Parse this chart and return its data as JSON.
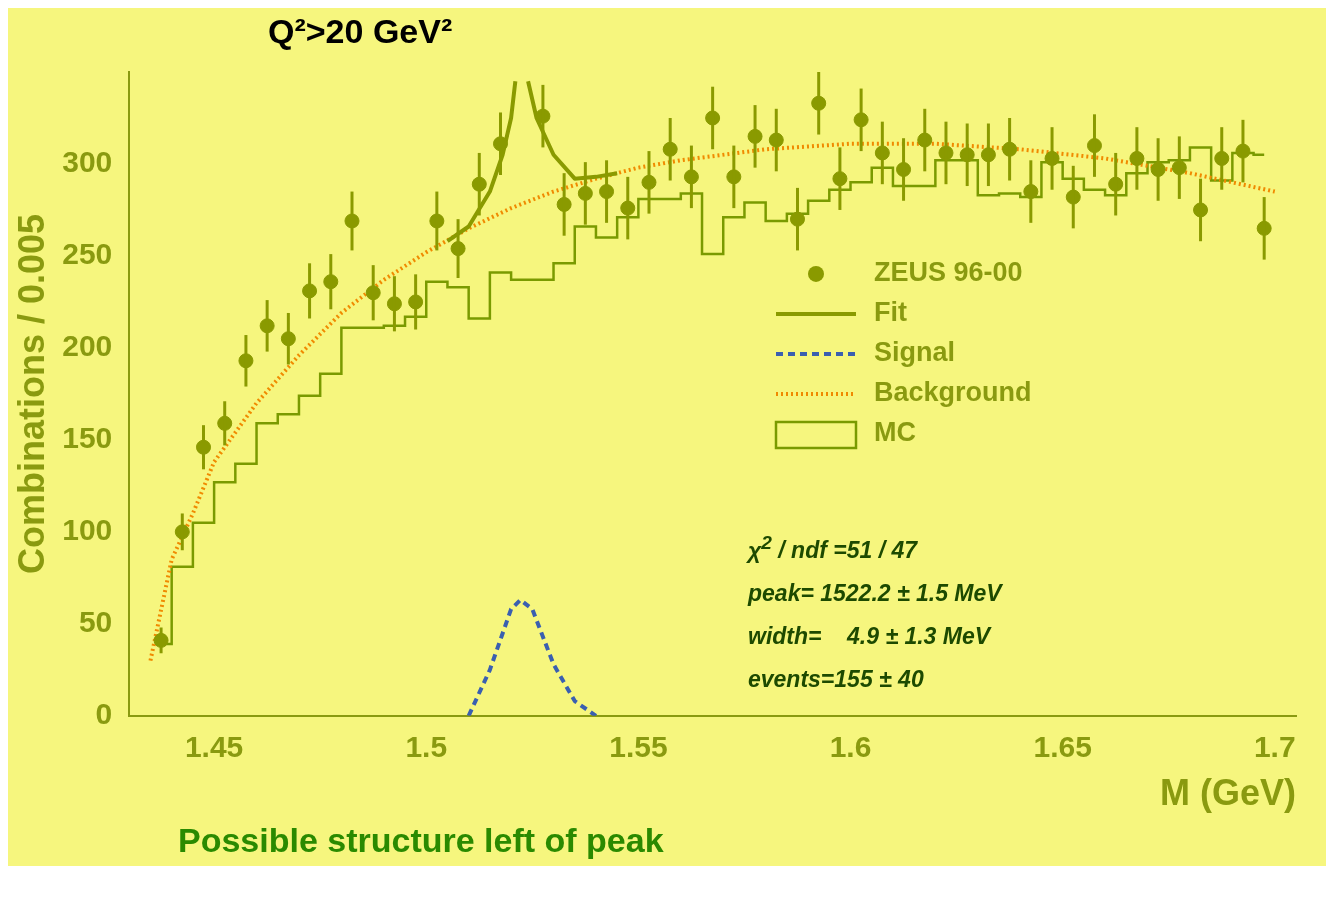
{
  "chart_data": {
    "type": "scatter",
    "xlabel": "M (GeV)",
    "ylabel": "Combinations / 0.005",
    "xlim": [
      1.43,
      1.705
    ],
    "ylim": [
      0,
      350
    ],
    "xticks": [
      1.45,
      1.5,
      1.55,
      1.6,
      1.65,
      1.7
    ],
    "yticks": [
      0,
      50,
      100,
      150,
      200,
      250,
      300
    ],
    "grid": false,
    "legend": "center right",
    "annotations": [
      "Q²>20 GeV²",
      "χ$^{2}$ / ndf =51 / 47",
      "peak= 1522.2 ± 1.5 MeV",
      "width=    4.9 ± 1.3 MeV",
      "events=155 ± 40",
      "Possible structure left of peak"
    ],
    "x": [
      1.4375,
      1.4425,
      1.4475,
      1.4525,
      1.4575,
      1.4625,
      1.4675,
      1.4725,
      1.4775,
      1.4825,
      1.4875,
      1.4925,
      1.4975,
      1.5025,
      1.5075,
      1.5125,
      1.5175,
      1.5225,
      1.5275,
      1.5325,
      1.5375,
      1.5425,
      1.5475,
      1.5525,
      1.5575,
      1.5625,
      1.5675,
      1.5725,
      1.5775,
      1.5825,
      1.5875,
      1.5925,
      1.5975,
      1.6025,
      1.6075,
      1.6125,
      1.6175,
      1.6225,
      1.6275,
      1.6325,
      1.6375,
      1.6425,
      1.6475,
      1.6525,
      1.6575,
      1.6625,
      1.6675,
      1.6725,
      1.6775,
      1.6825,
      1.6875,
      1.6925,
      1.6975
    ],
    "series": [
      {
        "name": "ZEUS 96-00",
        "type": "scatter",
        "marker": "circle",
        "color": "#8a9a00",
        "values": [
          41,
          100,
          146,
          159,
          193,
          212,
          205,
          231,
          236,
          269,
          230,
          224,
          225,
          269,
          254,
          289,
          311,
          null,
          326,
          278,
          284,
          285,
          276,
          290,
          308,
          293,
          325,
          293,
          315,
          313,
          270,
          333,
          292,
          324,
          306,
          297,
          313,
          306,
          305,
          305,
          308,
          285,
          303,
          282,
          310,
          289,
          303,
          297,
          298,
          275,
          303,
          307,
          265
        ],
        "errors": [
          7,
          10,
          12,
          12,
          14,
          14,
          14,
          15,
          15,
          16,
          15,
          15,
          15,
          16,
          16,
          17,
          17,
          null,
          17,
          17,
          17,
          17,
          17,
          17,
          17,
          17,
          17,
          17,
          17,
          17,
          17,
          17,
          17,
          17,
          17,
          17,
          17,
          17,
          17,
          17,
          17,
          17,
          17,
          17,
          17,
          17,
          17,
          17,
          17,
          17,
          17,
          17,
          17
        ]
      },
      {
        "name": "Fit",
        "type": "line",
        "line_style": "solid",
        "color": "#8a9a00",
        "x": [
          1.505,
          1.51,
          1.515,
          1.518,
          1.52,
          1.521,
          1.5222,
          1.524,
          1.526,
          1.53,
          1.535,
          1.54,
          1.545
        ],
        "values": [
          258,
          266,
          285,
          305,
          325,
          345,
          null,
          345,
          325,
          305,
          292,
          293,
          295
        ]
      },
      {
        "name": "Signal",
        "type": "line",
        "line_style": "dashed",
        "color": "#3a5fb0",
        "x": [
          1.51,
          1.515,
          1.52,
          1.5222,
          1.525,
          1.53,
          1.535,
          1.54
        ],
        "values": [
          0,
          25,
          58,
          63,
          58,
          28,
          8,
          0
        ]
      },
      {
        "name": "Background",
        "type": "line",
        "line_style": "dotted",
        "color": "#f08a00",
        "x": [
          1.435,
          1.44,
          1.445,
          1.45,
          1.46,
          1.47,
          1.48,
          1.49,
          1.5,
          1.51,
          1.52,
          1.53,
          1.54,
          1.55,
          1.56,
          1.58,
          1.6,
          1.62,
          1.64,
          1.66,
          1.68,
          1.7
        ],
        "values": [
          30,
          85,
          110,
          138,
          170,
          196,
          219,
          237,
          252,
          265,
          276,
          285,
          292,
          298,
          302,
          308,
          311,
          311,
          308,
          303,
          295,
          285
        ]
      },
      {
        "name": "MC",
        "type": "step",
        "color": "#7a9a00",
        "values": [
          39,
          81,
          105,
          127,
          137,
          159,
          164,
          174,
          186,
          211,
          211,
          212,
          217,
          236,
          233,
          216,
          241,
          237,
          237,
          246,
          266,
          260,
          271,
          281,
          281,
          284,
          251,
          271,
          279,
          269,
          273,
          280,
          286,
          290,
          298,
          288,
          288,
          302,
          302,
          283,
          284,
          282,
          301,
          292,
          286,
          283,
          295,
          301,
          302,
          309,
          291,
          306,
          305
        ]
      }
    ]
  }
}
